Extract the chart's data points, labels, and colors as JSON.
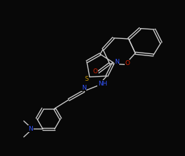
{
  "background_color": "#080808",
  "bond_color": "#cccccc",
  "color_N": "#3355ff",
  "color_O": "#dd2200",
  "color_S": "#cc9900",
  "color_C": "#cccccc",
  "lw": 1.0,
  "fs": 6.5,
  "bl": 0.68
}
